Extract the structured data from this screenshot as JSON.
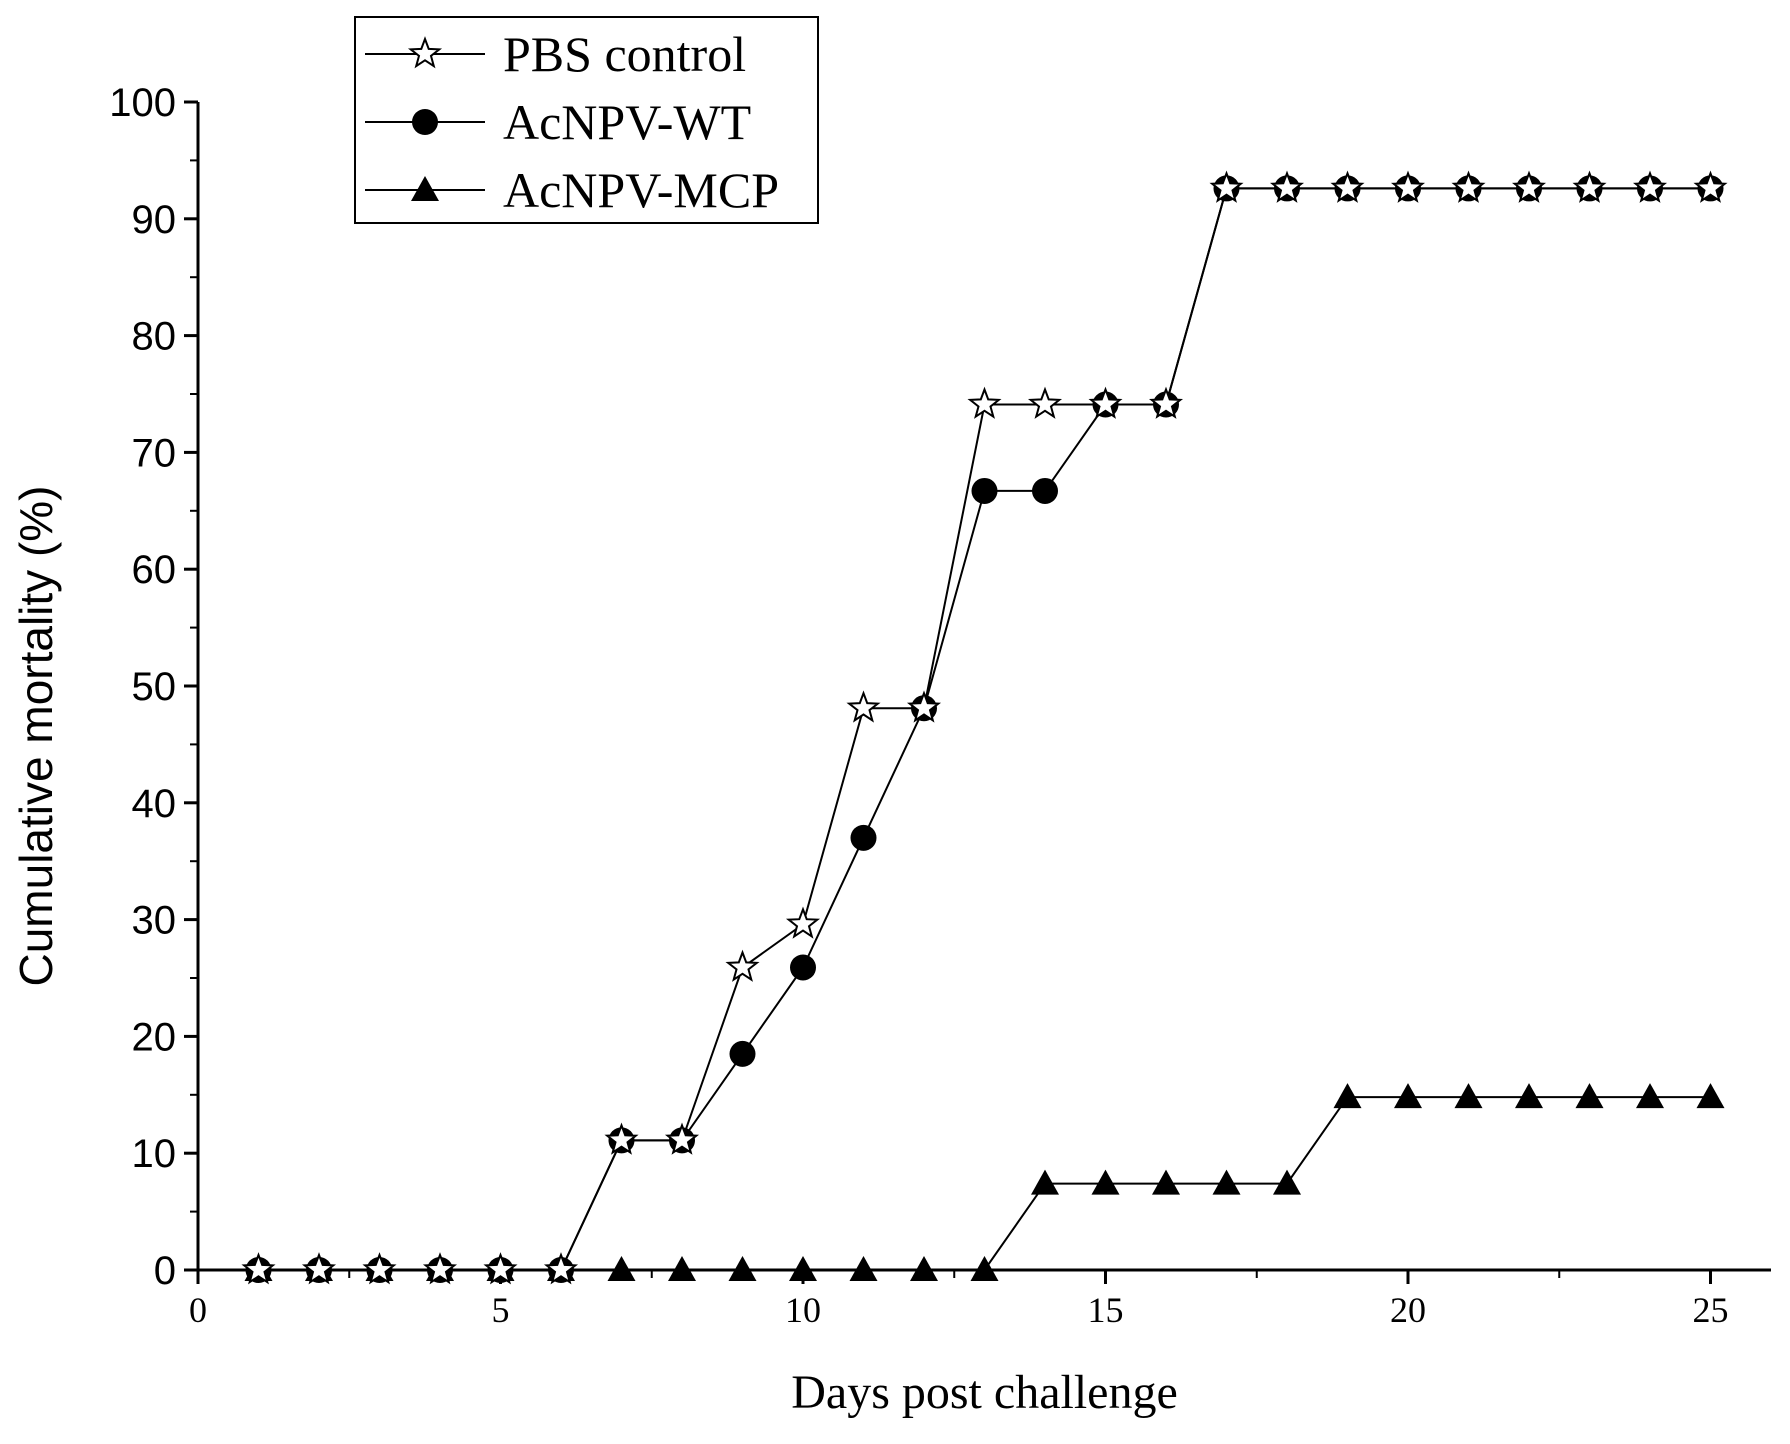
{
  "chart_data": {
    "type": "line",
    "xlabel": "Days post challenge",
    "ylabel": "Cumulative mortality (%)",
    "xlim": [
      0,
      26
    ],
    "ylim": [
      0,
      100
    ],
    "x_ticks": [
      0,
      5,
      10,
      15,
      20,
      25
    ],
    "y_ticks": [
      0,
      10,
      20,
      30,
      40,
      50,
      60,
      70,
      80,
      90,
      100
    ],
    "grid": false,
    "legend_position": "top-left",
    "series": [
      {
        "name": "PBS control",
        "marker": "open-star",
        "x": [
          1,
          2,
          3,
          4,
          5,
          6,
          7,
          8,
          9,
          10,
          11,
          12,
          13,
          14,
          15,
          16,
          17,
          18,
          19,
          20,
          21,
          22,
          23,
          24,
          25
        ],
        "values": [
          0,
          0,
          0,
          0,
          0,
          0,
          11.1,
          11.1,
          25.9,
          29.6,
          48.1,
          48.1,
          74.1,
          74.1,
          74.1,
          74.1,
          92.6,
          92.6,
          92.6,
          92.6,
          92.6,
          92.6,
          92.6,
          92.6,
          92.6
        ]
      },
      {
        "name": "AcNPV-WT",
        "marker": "filled-circle",
        "x": [
          1,
          2,
          3,
          4,
          5,
          6,
          7,
          8,
          9,
          10,
          11,
          12,
          13,
          14,
          15,
          16,
          17,
          18,
          19,
          20,
          21,
          22,
          23,
          24,
          25
        ],
        "values": [
          0,
          0,
          0,
          0,
          0,
          0,
          11.1,
          11.1,
          18.5,
          25.9,
          37.0,
          48.1,
          66.7,
          66.7,
          74.1,
          74.1,
          92.6,
          92.6,
          92.6,
          92.6,
          92.6,
          92.6,
          92.6,
          92.6,
          92.6
        ]
      },
      {
        "name": "AcNPV-MCP",
        "marker": "filled-triangle",
        "x": [
          1,
          2,
          3,
          4,
          5,
          6,
          7,
          8,
          9,
          10,
          11,
          12,
          13,
          14,
          15,
          16,
          17,
          18,
          19,
          20,
          21,
          22,
          23,
          24,
          25
        ],
        "values": [
          0,
          0,
          0,
          0,
          0,
          0,
          0,
          0,
          0,
          0,
          0,
          0,
          0,
          7.4,
          7.4,
          7.4,
          7.4,
          7.4,
          14.8,
          14.8,
          14.8,
          14.8,
          14.8,
          14.8,
          14.8
        ]
      }
    ]
  }
}
